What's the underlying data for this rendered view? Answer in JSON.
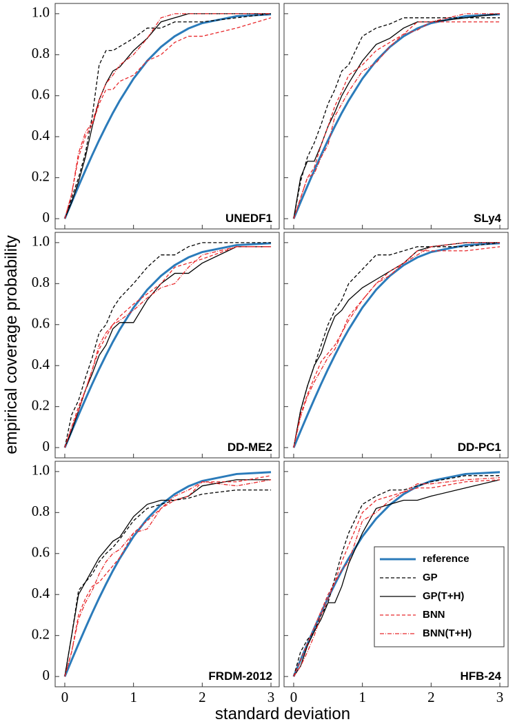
{
  "xlabel": "standard deviation",
  "ylabel": "empirical coverage probability",
  "chart_data": [
    {
      "type": "line",
      "title": "UNEDF1",
      "x": [
        0,
        0.1,
        0.2,
        0.3,
        0.4,
        0.5,
        0.6,
        0.7,
        0.8,
        1.0,
        1.2,
        1.4,
        1.6,
        1.8,
        2.0,
        2.5,
        3.0
      ],
      "xlim": [
        -0.14,
        3.12
      ],
      "ylim": [
        -0.05,
        1.05
      ],
      "xticks": [
        0,
        1,
        2,
        3
      ],
      "yticks": [
        0,
        0.2,
        0.4,
        0.6,
        0.8,
        {
          "value": 1,
          "label": "1.0"
        }
      ],
      "series": [
        {
          "color": "#2b7bba",
          "style": "solid",
          "width": 3,
          "values": [
            0,
            0.08,
            0.159,
            0.236,
            0.311,
            0.383,
            0.451,
            0.516,
            0.576,
            0.683,
            0.77,
            0.838,
            0.89,
            0.928,
            0.954,
            0.988,
            0.997
          ]
        },
        {
          "color": "#000000",
          "style": "dashed",
          "width": 1.3,
          "values": [
            0,
            0.1,
            0.2,
            0.32,
            0.5,
            0.75,
            0.82,
            0.82,
            0.84,
            0.88,
            0.93,
            0.93,
            0.96,
            0.96,
            0.96,
            0.98,
            1.0
          ]
        },
        {
          "color": "#000000",
          "style": "solid",
          "width": 1.3,
          "values": [
            0,
            0.08,
            0.18,
            0.3,
            0.45,
            0.58,
            0.66,
            0.72,
            0.74,
            0.82,
            0.88,
            0.96,
            0.98,
            1.0,
            1.0,
            1.0,
            1.0
          ]
        },
        {
          "color": "#e8272a",
          "style": "dashed",
          "width": 1.3,
          "values": [
            0,
            0.12,
            0.3,
            0.4,
            0.46,
            0.56,
            0.63,
            0.63,
            0.67,
            0.7,
            0.77,
            0.8,
            0.86,
            0.89,
            0.89,
            0.93,
            0.98
          ]
        },
        {
          "color": "#e8272a",
          "style": "dashdot",
          "width": 1.3,
          "values": [
            0,
            0.12,
            0.32,
            0.42,
            0.47,
            0.58,
            0.66,
            0.7,
            0.75,
            0.8,
            0.88,
            0.98,
            1.0,
            1.0,
            1.0,
            1.0,
            1.0
          ]
        }
      ]
    },
    {
      "type": "line",
      "title": "SLy4",
      "x": [
        0,
        0.1,
        0.2,
        0.3,
        0.4,
        0.5,
        0.6,
        0.7,
        0.8,
        1.0,
        1.2,
        1.4,
        1.6,
        1.8,
        2.0,
        2.5,
        3.0
      ],
      "xlim": [
        -0.14,
        3.12
      ],
      "ylim": [
        -0.05,
        1.05
      ],
      "xticks": [
        0,
        1,
        2,
        3
      ],
      "yticks": [
        0,
        0.2,
        0.4,
        0.6,
        0.8,
        1
      ],
      "series": [
        {
          "color": "#2b7bba",
          "style": "solid",
          "width": 3,
          "values": [
            0,
            0.08,
            0.159,
            0.236,
            0.311,
            0.383,
            0.451,
            0.516,
            0.576,
            0.683,
            0.77,
            0.838,
            0.89,
            0.928,
            0.954,
            0.988,
            0.997
          ]
        },
        {
          "color": "#000000",
          "style": "dashed",
          "width": 1.3,
          "values": [
            0,
            0.18,
            0.3,
            0.37,
            0.46,
            0.56,
            0.63,
            0.72,
            0.75,
            0.89,
            0.93,
            0.95,
            0.98,
            0.98,
            0.98,
            0.98,
            0.98
          ]
        },
        {
          "color": "#000000",
          "style": "solid",
          "width": 1.3,
          "values": [
            0,
            0.2,
            0.28,
            0.28,
            0.36,
            0.45,
            0.52,
            0.6,
            0.66,
            0.77,
            0.85,
            0.88,
            0.93,
            0.96,
            0.96,
            0.98,
            1.0
          ]
        },
        {
          "color": "#e8272a",
          "style": "dashed",
          "width": 1.3,
          "values": [
            0,
            0.1,
            0.2,
            0.25,
            0.36,
            0.45,
            0.55,
            0.62,
            0.7,
            0.75,
            0.82,
            0.86,
            0.9,
            0.96,
            0.96,
            0.96,
            0.96
          ]
        },
        {
          "color": "#e8272a",
          "style": "dashdot",
          "width": 1.3,
          "values": [
            0,
            0.1,
            0.2,
            0.22,
            0.3,
            0.36,
            0.5,
            0.56,
            0.62,
            0.72,
            0.76,
            0.84,
            0.9,
            0.92,
            0.96,
            1.0,
            1.0
          ]
        }
      ]
    },
    {
      "type": "line",
      "title": "DD-ME2",
      "x": [
        0,
        0.1,
        0.2,
        0.3,
        0.4,
        0.5,
        0.6,
        0.7,
        0.8,
        1.0,
        1.2,
        1.4,
        1.6,
        1.8,
        2.0,
        2.5,
        3.0
      ],
      "xlim": [
        -0.14,
        3.12
      ],
      "ylim": [
        -0.05,
        1.05
      ],
      "xticks": [
        0,
        1,
        2,
        3
      ],
      "yticks": [
        0,
        0.2,
        0.4,
        0.6,
        0.8,
        {
          "value": 1,
          "label": "1.0"
        }
      ],
      "series": [
        {
          "color": "#2b7bba",
          "style": "solid",
          "width": 3,
          "values": [
            0,
            0.08,
            0.159,
            0.236,
            0.311,
            0.383,
            0.451,
            0.516,
            0.576,
            0.683,
            0.77,
            0.838,
            0.89,
            0.928,
            0.954,
            0.988,
            0.997
          ]
        },
        {
          "color": "#000000",
          "style": "dashed",
          "width": 1.3,
          "values": [
            0,
            0.16,
            0.23,
            0.34,
            0.44,
            0.56,
            0.6,
            0.68,
            0.73,
            0.8,
            0.88,
            0.94,
            0.94,
            0.98,
            1.0,
            1.0,
            1.0
          ]
        },
        {
          "color": "#000000",
          "style": "solid",
          "width": 1.3,
          "values": [
            0,
            0.08,
            0.18,
            0.28,
            0.36,
            0.45,
            0.5,
            0.58,
            0.61,
            0.61,
            0.72,
            0.8,
            0.85,
            0.85,
            0.9,
            0.98,
            0.98
          ]
        },
        {
          "color": "#e8272a",
          "style": "dashed",
          "width": 1.3,
          "values": [
            0,
            0.1,
            0.2,
            0.28,
            0.38,
            0.48,
            0.54,
            0.6,
            0.64,
            0.7,
            0.75,
            0.8,
            0.88,
            0.9,
            0.92,
            0.98,
            0.98
          ]
        },
        {
          "color": "#e8272a",
          "style": "dashdot",
          "width": 1.3,
          "values": [
            0,
            0.1,
            0.18,
            0.28,
            0.38,
            0.5,
            0.56,
            0.6,
            0.62,
            0.67,
            0.73,
            0.78,
            0.8,
            0.88,
            0.94,
            0.98,
            0.98
          ]
        }
      ]
    },
    {
      "type": "line",
      "title": "DD-PC1",
      "x": [
        0,
        0.1,
        0.2,
        0.3,
        0.4,
        0.5,
        0.6,
        0.7,
        0.8,
        1.0,
        1.2,
        1.4,
        1.6,
        1.8,
        2.0,
        2.5,
        3.0
      ],
      "xlim": [
        -0.14,
        3.12
      ],
      "ylim": [
        -0.05,
        1.05
      ],
      "xticks": [
        0,
        1,
        2,
        3
      ],
      "yticks": [
        0,
        0.2,
        0.4,
        0.6,
        0.8,
        1
      ],
      "series": [
        {
          "color": "#2b7bba",
          "style": "solid",
          "width": 3,
          "values": [
            0,
            0.08,
            0.159,
            0.236,
            0.311,
            0.383,
            0.451,
            0.516,
            0.576,
            0.683,
            0.77,
            0.838,
            0.89,
            0.928,
            0.954,
            0.988,
            0.997
          ]
        },
        {
          "color": "#000000",
          "style": "dashed",
          "width": 1.3,
          "values": [
            0,
            0.18,
            0.3,
            0.4,
            0.5,
            0.6,
            0.67,
            0.72,
            0.8,
            0.87,
            0.94,
            0.94,
            0.96,
            0.98,
            0.98,
            0.98,
            1.0
          ]
        },
        {
          "color": "#000000",
          "style": "solid",
          "width": 1.3,
          "values": [
            0,
            0.18,
            0.3,
            0.4,
            0.46,
            0.56,
            0.64,
            0.67,
            0.72,
            0.78,
            0.82,
            0.86,
            0.9,
            0.96,
            0.98,
            1.0,
            1.0
          ]
        },
        {
          "color": "#e8272a",
          "style": "dashed",
          "width": 1.3,
          "values": [
            0,
            0.16,
            0.26,
            0.34,
            0.42,
            0.46,
            0.5,
            0.56,
            0.64,
            0.72,
            0.8,
            0.86,
            0.9,
            0.96,
            0.96,
            0.96,
            0.98
          ]
        },
        {
          "color": "#e8272a",
          "style": "dashdot",
          "width": 1.3,
          "values": [
            0,
            0.15,
            0.25,
            0.32,
            0.38,
            0.44,
            0.48,
            0.56,
            0.62,
            0.72,
            0.8,
            0.84,
            0.9,
            0.94,
            0.98,
            1.0,
            1.0
          ]
        }
      ]
    },
    {
      "type": "line",
      "title": "FRDM-2012",
      "x": [
        0,
        0.1,
        0.2,
        0.3,
        0.4,
        0.5,
        0.6,
        0.7,
        0.8,
        1.0,
        1.2,
        1.4,
        1.6,
        1.8,
        2.0,
        2.5,
        3.0
      ],
      "xlim": [
        -0.14,
        3.12
      ],
      "ylim": [
        -0.05,
        1.05
      ],
      "xticks": [
        0,
        1,
        2,
        3
      ],
      "yticks": [
        0,
        0.2,
        0.4,
        0.6,
        0.8,
        {
          "value": 1,
          "label": "1.0"
        }
      ],
      "series": [
        {
          "color": "#2b7bba",
          "style": "solid",
          "width": 3,
          "values": [
            0,
            0.08,
            0.159,
            0.236,
            0.311,
            0.383,
            0.451,
            0.516,
            0.576,
            0.683,
            0.77,
            0.838,
            0.89,
            0.928,
            0.954,
            0.988,
            0.997
          ]
        },
        {
          "color": "#000000",
          "style": "dashed",
          "width": 1.3,
          "values": [
            0,
            0.2,
            0.42,
            0.46,
            0.5,
            0.56,
            0.6,
            0.63,
            0.67,
            0.76,
            0.82,
            0.84,
            0.86,
            0.87,
            0.89,
            0.91,
            0.91
          ]
        },
        {
          "color": "#000000",
          "style": "solid",
          "width": 1.3,
          "values": [
            0,
            0.2,
            0.4,
            0.46,
            0.52,
            0.58,
            0.62,
            0.66,
            0.68,
            0.78,
            0.84,
            0.86,
            0.86,
            0.88,
            0.93,
            0.96,
            0.96
          ]
        },
        {
          "color": "#e8272a",
          "style": "dashed",
          "width": 1.3,
          "values": [
            0,
            0.12,
            0.3,
            0.38,
            0.44,
            0.46,
            0.5,
            0.54,
            0.58,
            0.7,
            0.76,
            0.82,
            0.86,
            0.88,
            0.95,
            0.95,
            0.98
          ]
        },
        {
          "color": "#e8272a",
          "style": "dashdot",
          "width": 1.3,
          "values": [
            0,
            0.12,
            0.28,
            0.36,
            0.42,
            0.5,
            0.56,
            0.6,
            0.62,
            0.7,
            0.72,
            0.82,
            0.88,
            0.91,
            0.95,
            0.93,
            0.96
          ]
        }
      ]
    },
    {
      "type": "line",
      "title": "HFB-24",
      "x": [
        0,
        0.1,
        0.2,
        0.3,
        0.4,
        0.5,
        0.6,
        0.7,
        0.8,
        1.0,
        1.2,
        1.4,
        1.6,
        1.8,
        2.0,
        2.5,
        3.0
      ],
      "xlim": [
        -0.14,
        3.12
      ],
      "ylim": [
        -0.05,
        1.05
      ],
      "xticks": [
        0,
        1,
        2,
        3
      ],
      "yticks": [
        0,
        0.2,
        0.4,
        0.6,
        0.8,
        1
      ],
      "legend": "lower right",
      "series": [
        {
          "name": "reference",
          "color": "#2b7bba",
          "style": "solid",
          "width": 3,
          "values": [
            0,
            0.08,
            0.159,
            0.236,
            0.311,
            0.383,
            0.451,
            0.516,
            0.576,
            0.683,
            0.77,
            0.838,
            0.89,
            0.928,
            0.954,
            0.988,
            0.997
          ]
        },
        {
          "name": "GP",
          "color": "#000000",
          "style": "dashed",
          "width": 1.3,
          "values": [
            0,
            0.12,
            0.18,
            0.22,
            0.3,
            0.36,
            0.48,
            0.6,
            0.7,
            0.84,
            0.88,
            0.91,
            0.91,
            0.93,
            0.95,
            0.98,
            0.98
          ]
        },
        {
          "name": "GP(T+H)",
          "color": "#000000",
          "style": "solid",
          "width": 1.3,
          "values": [
            0,
            0.05,
            0.15,
            0.22,
            0.28,
            0.36,
            0.36,
            0.44,
            0.55,
            0.7,
            0.82,
            0.84,
            0.86,
            0.86,
            0.88,
            0.92,
            0.96
          ]
        },
        {
          "name": "BNN",
          "color": "#e8272a",
          "style": "dashed",
          "width": 1.3,
          "values": [
            0,
            0.08,
            0.16,
            0.24,
            0.32,
            0.4,
            0.46,
            0.56,
            0.64,
            0.8,
            0.86,
            0.88,
            0.9,
            0.92,
            0.92,
            0.95,
            0.96
          ]
        },
        {
          "name": "BNN(T+H)",
          "color": "#e8272a",
          "style": "dashdot",
          "width": 1.3,
          "values": [
            0,
            0.05,
            0.12,
            0.2,
            0.3,
            0.38,
            0.46,
            0.52,
            0.56,
            0.76,
            0.8,
            0.86,
            0.9,
            0.94,
            0.94,
            0.96,
            0.97
          ]
        }
      ]
    }
  ]
}
